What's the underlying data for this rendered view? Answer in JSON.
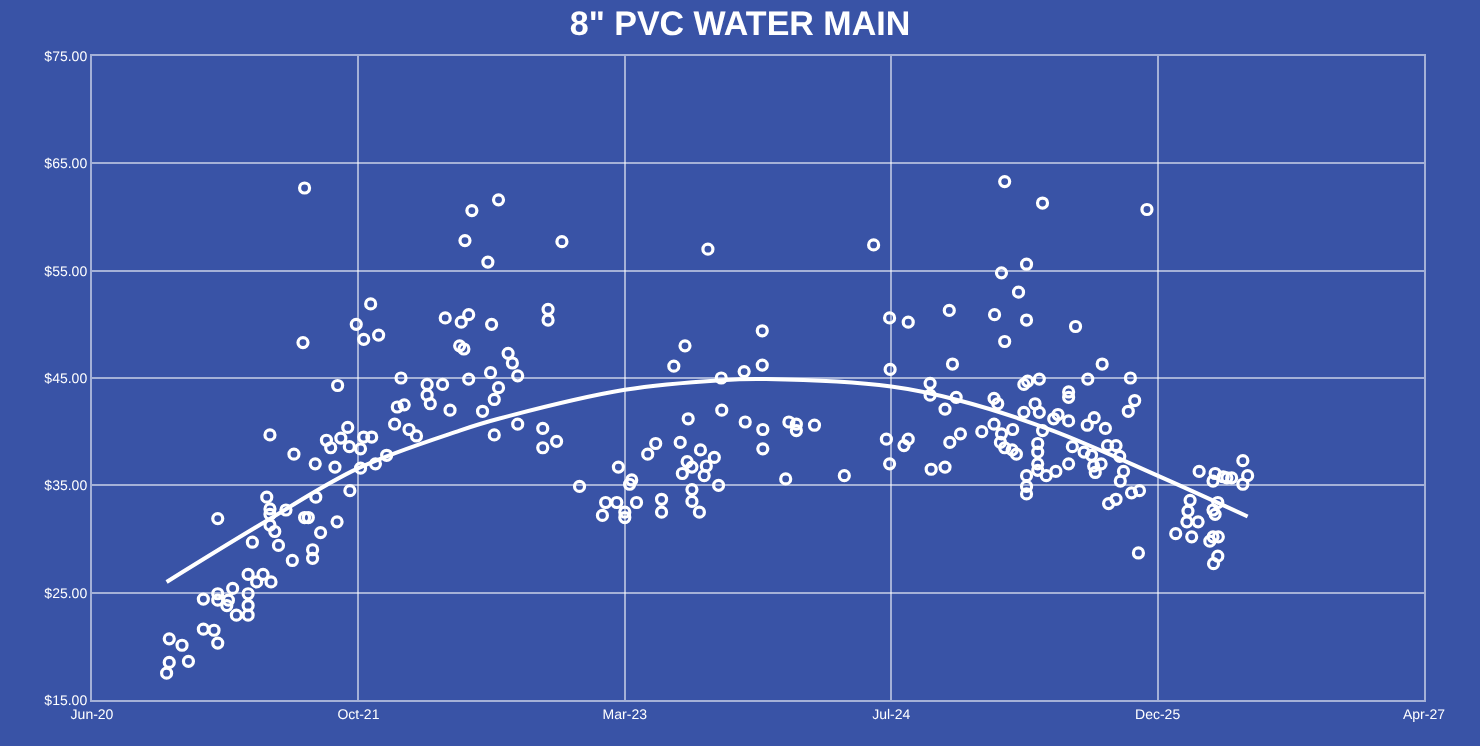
{
  "chart_data": {
    "type": "scatter",
    "title": "8\" PVC WATER MAIN",
    "xlim": [
      "2020-06-18",
      "2027-04-23"
    ],
    "xticks": [
      {
        "value": "2020-06-18",
        "label": "Jun-20"
      },
      {
        "value": "2021-10-31",
        "label": "Oct-21"
      },
      {
        "value": "2023-03-15",
        "label": "Mar-23"
      },
      {
        "value": "2024-07-27",
        "label": "Jul-24"
      },
      {
        "value": "2025-12-09",
        "label": "Dec-25"
      },
      {
        "value": "2027-04-23",
        "label": "Apr-27"
      }
    ],
    "ylim": [
      15,
      75
    ],
    "yticks": [
      {
        "value": 15,
        "label": "$15.00"
      },
      {
        "value": 25,
        "label": "$25.00"
      },
      {
        "value": 35,
        "label": "$35.00"
      },
      {
        "value": 45,
        "label": "$45.00"
      },
      {
        "value": 55,
        "label": "$55.00"
      },
      {
        "value": 65,
        "label": "$65.00"
      },
      {
        "value": 75,
        "label": "$75.00"
      }
    ],
    "grid": true,
    "series": [
      {
        "marker": "circle",
        "color": "#ffffff",
        "x": [
          "2020-11-05",
          "2020-11-10",
          "2020-11-10",
          "2020-12-04",
          "2020-12-16",
          "2021-01-13",
          "2021-01-13",
          "2021-02-02",
          "2021-02-09",
          "2021-02-09",
          "2021-02-09",
          "2021-02-26",
          "2021-03-01",
          "2021-03-09",
          "2021-03-16",
          "2021-04-07",
          "2021-04-07",
          "2021-04-07",
          "2021-04-07",
          "2021-04-23",
          "2021-05-05",
          "2021-05-20",
          "2021-02-09",
          "2021-04-15",
          "2021-05-12",
          "2021-05-18",
          "2021-05-18",
          "2021-05-18",
          "2021-05-27",
          "2021-06-03",
          "2021-06-17",
          "2021-06-29",
          "2021-05-18",
          "2021-07-02",
          "2021-07-22",
          "2021-07-19",
          "2021-07-22",
          "2021-07-29",
          "2021-08-06",
          "2021-08-06",
          "2021-08-12",
          "2021-08-11",
          "2021-08-21",
          "2021-09-01",
          "2021-09-09",
          "2021-09-17",
          "2021-09-21",
          "2021-09-22",
          "2021-09-28",
          "2021-10-11",
          "2021-10-14",
          "2021-10-15",
          "2021-10-27",
          "2021-11-04",
          "2021-11-04",
          "2021-11-10",
          "2021-11-10",
          "2021-11-23",
          "2021-11-25",
          "2021-12-02",
          "2021-12-08",
          "2021-12-23",
          "2022-01-07",
          "2022-01-12",
          "2022-01-19",
          "2022-01-25",
          "2022-02-03",
          "2022-02-17",
          "2022-03-09",
          "2022-03-09",
          "2022-03-15",
          "2022-04-07",
          "2022-04-12",
          "2022-04-21",
          "2022-05-12",
          "2022-05-17",
          "2022-05-09",
          "2022-05-26",
          "2022-05-26",
          "2022-05-19",
          "2022-06-01",
          "2022-06-21",
          "2022-07-01",
          "2022-07-06",
          "2022-07-08",
          "2022-07-13",
          "2022-07-13",
          "2022-07-21",
          "2022-07-21",
          "2022-08-08",
          "2022-08-16",
          "2022-08-26",
          "2022-08-26",
          "2022-10-12",
          "2022-10-12",
          "2022-11-07",
          "2022-10-22",
          "2022-10-22",
          "2022-11-17",
          "2022-12-20",
          "2023-02-01",
          "2023-02-07",
          "2023-02-28",
          "2023-03-03",
          "2023-03-15",
          "2023-03-15",
          "2023-03-24",
          "2023-03-28",
          "2023-04-06",
          "2023-04-27",
          "2023-05-12",
          "2023-05-23",
          "2023-05-23",
          "2023-06-15",
          "2023-07-06",
          "2023-06-27",
          "2023-07-12",
          "2023-07-01",
          "2023-07-10",
          "2023-07-19",
          "2023-07-19",
          "2023-07-19",
          "2023-08-02",
          "2023-08-04",
          "2023-08-11",
          "2023-08-15",
          "2023-08-30",
          "2023-09-07",
          "2023-08-18",
          "2023-09-12",
          "2023-09-13",
          "2023-10-25",
          "2023-10-27",
          "2023-11-28",
          "2023-11-28",
          "2023-11-29",
          "2023-11-29",
          "2024-01-11",
          "2024-01-17",
          "2024-01-31",
          "2024-01-31",
          "2024-03-05",
          "2024-04-30",
          "2024-06-24",
          "2024-07-18",
          "2024-07-24",
          "2024-07-25",
          "2024-07-24",
          "2024-08-20",
          "2024-08-28",
          "2024-08-28",
          "2024-10-08",
          "2024-10-08",
          "2024-10-10",
          "2024-11-05",
          "2024-11-05",
          "2024-11-13",
          "2024-11-14",
          "2024-11-19",
          "2024-11-26",
          "2024-12-04",
          "2025-01-13",
          "2025-02-05",
          "2025-02-12",
          "2025-02-05",
          "2025-02-19",
          "2025-02-17",
          "2025-02-25",
          "2025-03-11",
          "2025-03-12",
          "2025-03-19",
          "2025-02-06",
          "2025-02-19",
          "2025-02-25",
          "2025-02-25",
          "2025-03-23",
          "2025-04-07",
          "2025-04-07",
          "2025-04-02",
          "2025-04-02",
          "2025-04-09",
          "2025-05-01",
          "2025-05-07",
          "2025-04-23",
          "2025-05-01",
          "2025-05-07",
          "2025-04-28",
          "2025-04-28",
          "2025-04-28",
          "2025-04-28",
          "2025-04-07",
          "2025-04-07",
          "2025-04-07",
          "2025-05-14",
          "2025-06-01",
          "2025-05-28",
          "2025-06-05",
          "2025-06-25",
          "2025-06-25",
          "2025-06-25",
          "2025-06-25",
          "2025-07-02",
          "2025-07-08",
          "2025-07-24",
          "2025-07-30",
          "2025-07-31",
          "2025-08-12",
          "2025-08-07",
          "2025-08-11",
          "2025-08-14",
          "2025-08-25",
          "2025-09-02",
          "2025-09-06",
          "2025-09-22",
          "2025-09-29",
          "2025-10-06",
          "2025-09-30",
          "2025-09-22",
          "2025-09-08",
          "2025-08-27",
          "2025-10-19",
          "2025-10-27",
          "2025-10-15",
          "2025-10-21",
          "2025-11-05",
          "2025-11-03",
          "2025-11-19",
          "2026-01-12",
          "2026-02-04",
          "2026-02-02",
          "2026-02-08",
          "2026-02-11",
          "2026-02-23",
          "2026-02-25",
          "2026-03-17",
          "2026-03-23",
          "2026-03-23",
          "2026-03-27",
          "2026-03-23",
          "2026-04-02",
          "2026-04-01",
          "2026-04-01",
          "2026-03-24",
          "2026-03-27",
          "2026-04-11",
          "2026-04-18",
          "2026-04-27",
          "2026-05-18",
          "2026-05-18",
          "2026-05-27"
        ],
        "values": [
          17.5,
          18.5,
          20.7,
          20.1,
          18.6,
          21.6,
          24.4,
          21.5,
          20.3,
          24.9,
          24.3,
          23.8,
          24.3,
          25.4,
          22.9,
          22.9,
          23.8,
          24.9,
          26.7,
          26.0,
          26.7,
          26.0,
          31.9,
          29.7,
          33.9,
          32.8,
          32.3,
          31.3,
          30.7,
          29.4,
          32.7,
          28.0,
          39.7,
          37.9,
          62.7,
          48.3,
          32.0,
          32.0,
          29.0,
          28.2,
          33.9,
          37.0,
          30.6,
          39.2,
          38.5,
          36.7,
          31.6,
          44.3,
          39.4,
          40.4,
          38.6,
          34.5,
          50.0,
          38.4,
          36.6,
          48.6,
          39.5,
          51.9,
          39.5,
          37.0,
          49.0,
          37.8,
          40.7,
          42.3,
          45.0,
          42.5,
          40.2,
          39.6,
          44.4,
          43.4,
          42.6,
          44.4,
          50.6,
          42.0,
          50.2,
          47.7,
          48.0,
          50.9,
          44.9,
          57.8,
          60.6,
          41.9,
          55.8,
          45.5,
          50.0,
          43.0,
          39.7,
          61.6,
          44.1,
          47.3,
          46.4,
          45.2,
          40.7,
          40.3,
          38.5,
          39.1,
          51.4,
          50.4,
          57.7,
          34.9,
          32.2,
          33.4,
          33.4,
          36.7,
          32.5,
          32.0,
          35.1,
          35.5,
          33.4,
          37.9,
          38.9,
          33.7,
          32.5,
          46.1,
          48.0,
          39.0,
          41.2,
          36.1,
          37.2,
          36.7,
          34.6,
          33.5,
          32.5,
          38.3,
          35.9,
          36.8,
          37.6,
          35.0,
          57.0,
          45.0,
          42.0,
          45.6,
          40.9,
          49.4,
          46.2,
          40.2,
          38.4,
          35.6,
          40.9,
          40.7,
          40.1,
          40.6,
          35.9,
          57.4,
          39.3,
          50.6,
          45.8,
          37.0,
          38.7,
          39.3,
          50.2,
          44.5,
          43.4,
          36.5,
          42.1,
          36.7,
          51.3,
          39.0,
          46.3,
          43.2,
          39.8,
          40.0,
          43.1,
          42.6,
          40.7,
          39.8,
          39.0,
          38.5,
          38.3,
          40.2,
          37.9,
          50.9,
          54.8,
          63.3,
          48.4,
          53.0,
          55.6,
          50.4,
          41.8,
          44.4,
          44.7,
          44.9,
          61.3,
          42.6,
          41.8,
          40.1,
          38.9,
          38.1,
          37.0,
          36.4,
          35.9,
          34.9,
          34.2,
          35.9,
          36.3,
          41.2,
          41.6,
          43.7,
          43.2,
          41.0,
          37.0,
          38.6,
          49.8,
          38.1,
          40.6,
          44.9,
          41.3,
          37.8,
          36.8,
          36.2,
          37.0,
          40.3,
          38.7,
          38.7,
          37.7,
          36.3,
          35.4,
          33.7,
          33.3,
          46.3,
          45.0,
          42.9,
          41.9,
          34.3,
          34.5,
          28.7,
          60.7,
          30.5,
          32.6,
          31.6,
          33.6,
          30.2,
          31.6,
          36.3,
          29.8,
          35.4,
          32.7,
          32.3,
          30.2,
          30.2,
          33.4,
          28.4,
          27.7,
          36.1,
          35.8,
          35.7,
          35.7,
          37.3,
          35.1,
          35.9
        ]
      },
      {
        "type": "line",
        "marker": "none",
        "line_style": "solid",
        "color": "#ffffff",
        "x": [
          "2020-11-05",
          "2021-05-12",
          "2021-10-31",
          "2022-05-09",
          "2022-07-21",
          "2023-03-15",
          "2023-09-12",
          "2023-12-05",
          "2024-07-27",
          "2024-12-02",
          "2025-05-26",
          "2025-12-09",
          "2026-05-27"
        ],
        "values": [
          26.0,
          31.7,
          36.6,
          40.1,
          41.2,
          43.9,
          44.8,
          44.9,
          44.2,
          42.9,
          40.1,
          35.9,
          32.1
        ]
      }
    ]
  }
}
